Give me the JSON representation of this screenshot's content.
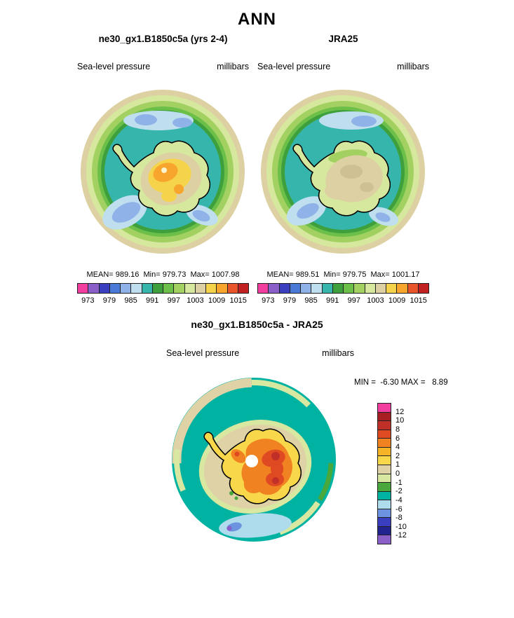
{
  "page": {
    "title": "ANN"
  },
  "panels": {
    "left": {
      "title": "ne30_gx1.B1850c5a (yrs 2-4)",
      "field_label": "Sea-level pressure",
      "units": "millibars",
      "stats": "MEAN= 989.16  Min= 979.73  Max= 1007.98"
    },
    "right": {
      "title": "JRA25",
      "field_label": "Sea-level pressure",
      "units": "millibars",
      "stats": "MEAN= 989.51  Min= 979.75  Max= 1001.17"
    },
    "diff": {
      "title": "ne30_gx1.B1850c5a - JRA25",
      "field_label": "Sea-level pressure",
      "units": "millibars",
      "minmax": "MIN =  -6.30 MAX =   8.89"
    }
  },
  "colorbars": {
    "pressure": {
      "orientation": "horizontal",
      "colors": [
        "#f23f9f",
        "#8a5fc8",
        "#3a3fc0",
        "#4a7ad8",
        "#8fb2e8",
        "#bfdfef",
        "#35b5ab",
        "#3da03c",
        "#6cbf49",
        "#a2d162",
        "#d6e89e",
        "#ddd0a2",
        "#f5d34a",
        "#f7a52d",
        "#e8552a",
        "#c22121"
      ],
      "ticks": [
        "973",
        "979",
        "985",
        "991",
        "997",
        "1003",
        "1009",
        "1015"
      ],
      "tick_positions": [
        0.0625,
        0.1875,
        0.3125,
        0.4375,
        0.5625,
        0.6875,
        0.8125,
        0.9375
      ]
    },
    "difference": {
      "orientation": "vertical",
      "colors": [
        "#f23f9f",
        "#a81e22",
        "#c03028",
        "#e04a22",
        "#f08222",
        "#f5b328",
        "#f8d84a",
        "#ded2a6",
        "#d8e8a0",
        "#49a83c",
        "#00b2a1",
        "#aedcec",
        "#6b93e0",
        "#3a3fc0",
        "#23238f",
        "#8a5fc8"
      ],
      "ticks": [
        "12",
        "10",
        "8",
        "6",
        "4",
        "2",
        "1",
        "0",
        "-1",
        "-2",
        "-4",
        "-6",
        "-8",
        "-10",
        "-12"
      ],
      "tick_positions": [
        0.0625,
        0.125,
        0.1875,
        0.25,
        0.3125,
        0.375,
        0.4375,
        0.5,
        0.5625,
        0.625,
        0.6875,
        0.75,
        0.8125,
        0.875,
        0.9375
      ]
    }
  },
  "chart_data": [
    {
      "type": "heatmap",
      "subtype": "polar_stereographic_filled_contour_map",
      "title": "ne30_gx1.B1850c5a (yrs 2-4)",
      "variable": "Sea-level pressure",
      "units": "millibars",
      "projection": "south_polar_stereographic",
      "region": "Antarctica / Southern Ocean",
      "stats": {
        "mean": 989.16,
        "min": 979.73,
        "max": 1007.98
      },
      "contour_levels": [
        973,
        976,
        979,
        982,
        985,
        988,
        991,
        994,
        997,
        1000,
        1003,
        1006,
        1009,
        1012,
        1015
      ],
      "colorbar_ticks": [
        973,
        979,
        985,
        991,
        997,
        1003,
        1009,
        1015
      ],
      "palette_low_to_high": [
        "#f23f9f",
        "#8a5fc8",
        "#3a3fc0",
        "#4a7ad8",
        "#8fb2e8",
        "#bfdfef",
        "#35b5ab",
        "#3da03c",
        "#6cbf49",
        "#a2d162",
        "#d6e89e",
        "#ddd0a2",
        "#f5d34a",
        "#f7a52d",
        "#e8552a",
        "#c22121"
      ],
      "legend_position": "bottom",
      "features": "Circumpolar low-pressure belt (blue/teal, ~979-988 mb) over Southern Ocean; high pressure over East Antarctic interior (yellow/orange, ~1000-1008 mb); tan midlatitude highs at map edge."
    },
    {
      "type": "heatmap",
      "subtype": "polar_stereographic_filled_contour_map",
      "title": "JRA25",
      "variable": "Sea-level pressure",
      "units": "millibars",
      "projection": "south_polar_stereographic",
      "region": "Antarctica / Southern Ocean",
      "stats": {
        "mean": 989.51,
        "min": 979.75,
        "max": 1001.17
      },
      "contour_levels": [
        973,
        976,
        979,
        982,
        985,
        988,
        991,
        994,
        997,
        1000,
        1003,
        1006,
        1009,
        1012,
        1015
      ],
      "colorbar_ticks": [
        973,
        979,
        985,
        991,
        997,
        1003,
        1009,
        1015
      ],
      "palette_low_to_high": [
        "#f23f9f",
        "#8a5fc8",
        "#3a3fc0",
        "#4a7ad8",
        "#8fb2e8",
        "#bfdfef",
        "#35b5ab",
        "#3da03c",
        "#6cbf49",
        "#a2d162",
        "#d6e89e",
        "#ddd0a2",
        "#f5d34a",
        "#f7a52d",
        "#e8552a",
        "#c22121"
      ],
      "legend_position": "bottom",
      "features": "Same circumpolar low belt; continental interior mostly tan (~997-1001 mb) with no strong orange maximum."
    },
    {
      "type": "heatmap",
      "subtype": "polar_stereographic_difference_map",
      "title": "ne30_gx1.B1850c5a - JRA25",
      "variable": "Sea-level pressure",
      "units": "millibars",
      "projection": "south_polar_stereographic",
      "region": "Antarctica / Southern Ocean",
      "stats": {
        "min": -6.3,
        "max": 8.89
      },
      "contour_levels": [
        -12,
        -10,
        -8,
        -6,
        -4,
        -2,
        -1,
        0,
        1,
        2,
        4,
        6,
        8,
        10,
        12
      ],
      "palette_top_to_bottom": [
        "#f23f9f",
        "#a81e22",
        "#c03028",
        "#e04a22",
        "#f08222",
        "#f5b328",
        "#f8d84a",
        "#ded2a6",
        "#d8e8a0",
        "#49a83c",
        "#00b2a1",
        "#aedcec",
        "#6b93e0",
        "#3a3fc0",
        "#23238f",
        "#8a5fc8"
      ],
      "legend_position": "right",
      "features": "Positive bias up to ~8.9 mb (yellow/orange/red) over Antarctic continent, strongest over East Antarctica; negative bias ~-2 to -6 mb (teal/light blue) over surrounding ocean; white circle marks data hole at pole."
    }
  ]
}
